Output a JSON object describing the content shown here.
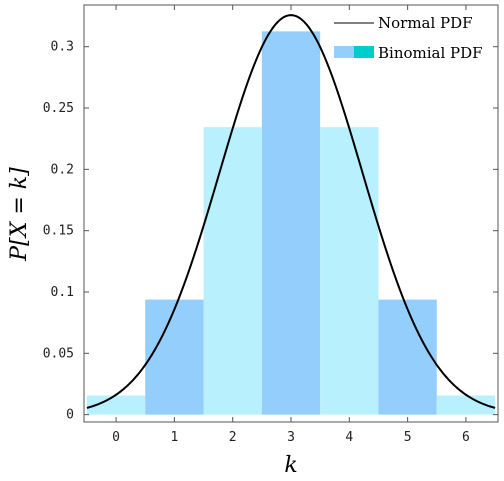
{
  "chart_data": {
    "type": "bar",
    "xlabel": "k",
    "ylabel": "P[X = k]",
    "xlim": [
      -0.55,
      6.55
    ],
    "ylim": [
      -0.006,
      0.334
    ],
    "x_ticks": [
      0,
      1,
      2,
      3,
      4,
      5,
      6
    ],
    "y_ticks": [
      0,
      0.05,
      0.1,
      0.15,
      0.2,
      0.25,
      0.3
    ],
    "y_tick_labels": [
      "0",
      "0.05",
      "0.1",
      "0.15",
      "0.2",
      "0.25",
      "0.3"
    ],
    "grid": false,
    "legend": {
      "placement": "top-right",
      "entries": [
        {
          "label": "Normal PDF",
          "type": "line",
          "color": "#000000"
        },
        {
          "label": "Binomial PDF",
          "type": "bar",
          "colors": [
            "#94cefc",
            "#00cccc"
          ]
        }
      ]
    },
    "series": [
      {
        "type": "bar",
        "categories": [
          0,
          1,
          2,
          3,
          4,
          5,
          6
        ],
        "values": [
          0.0156,
          0.0938,
          0.2344,
          0.3125,
          0.2344,
          0.0938,
          0.0156
        ],
        "colors": [
          "#b8f0fd",
          "#94cefc",
          "#b8f0fd",
          "#94cefc",
          "#b8f0fd",
          "#94cefc",
          "#b8f0fd"
        ]
      },
      {
        "type": "line",
        "function": "normal_pdf",
        "mean": 3,
        "sd": 1.2247,
        "color": "#000000"
      }
    ]
  }
}
